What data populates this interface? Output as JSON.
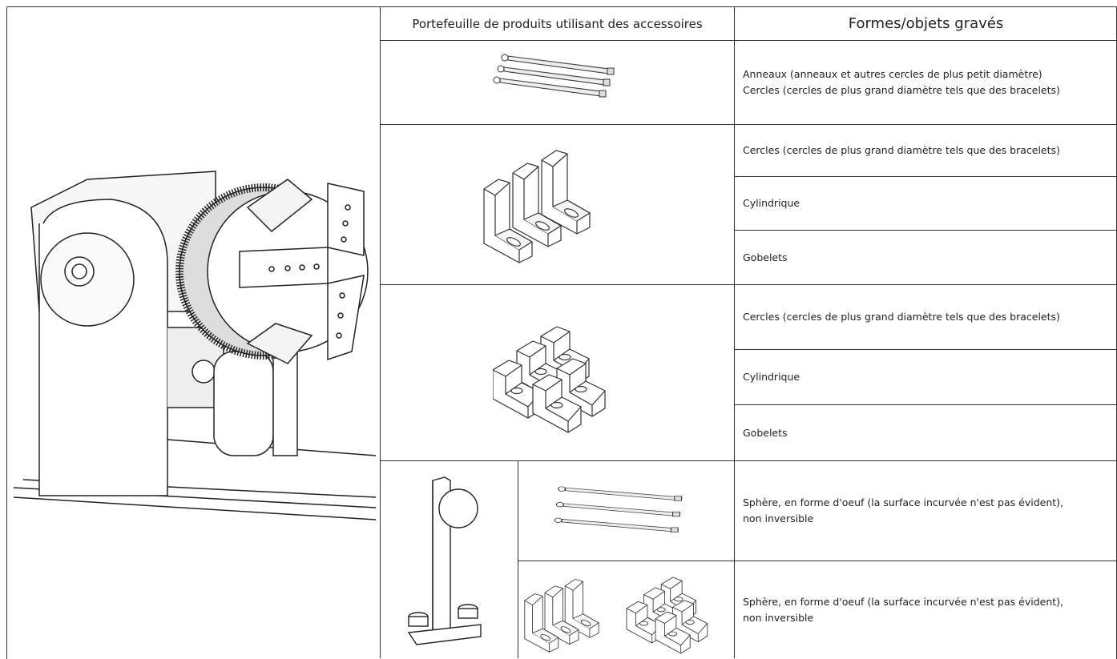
{
  "table": {
    "header": [
      "Portefeuille de produits utilisant des accessoires",
      "Formes/objets gravés"
    ],
    "rows": [
      [
        "Anneaux (anneaux et autres cercles de plus petit diamètre)",
        "Cercles (cercles de plus grand diamètre tels que des bracelets)"
      ],
      [
        "Cercles (cercles de plus grand diamètre tels que des bracelets)"
      ],
      [
        "Cylindrique"
      ],
      [
        "Gobelets"
      ],
      [
        "Cercles (cercles de plus grand diamètre tels que des bracelets)"
      ],
      [
        "Cylindrique"
      ],
      [
        "Gobelets"
      ],
      [
        "Sphère, en forme d'oeuf (la surface incurvée n'est pas évident),",
        "non inversible"
      ],
      [
        "Sphère, en forme d'oeuf (la surface incurvée n'est pas évident),",
        "non inversible"
      ]
    ]
  }
}
